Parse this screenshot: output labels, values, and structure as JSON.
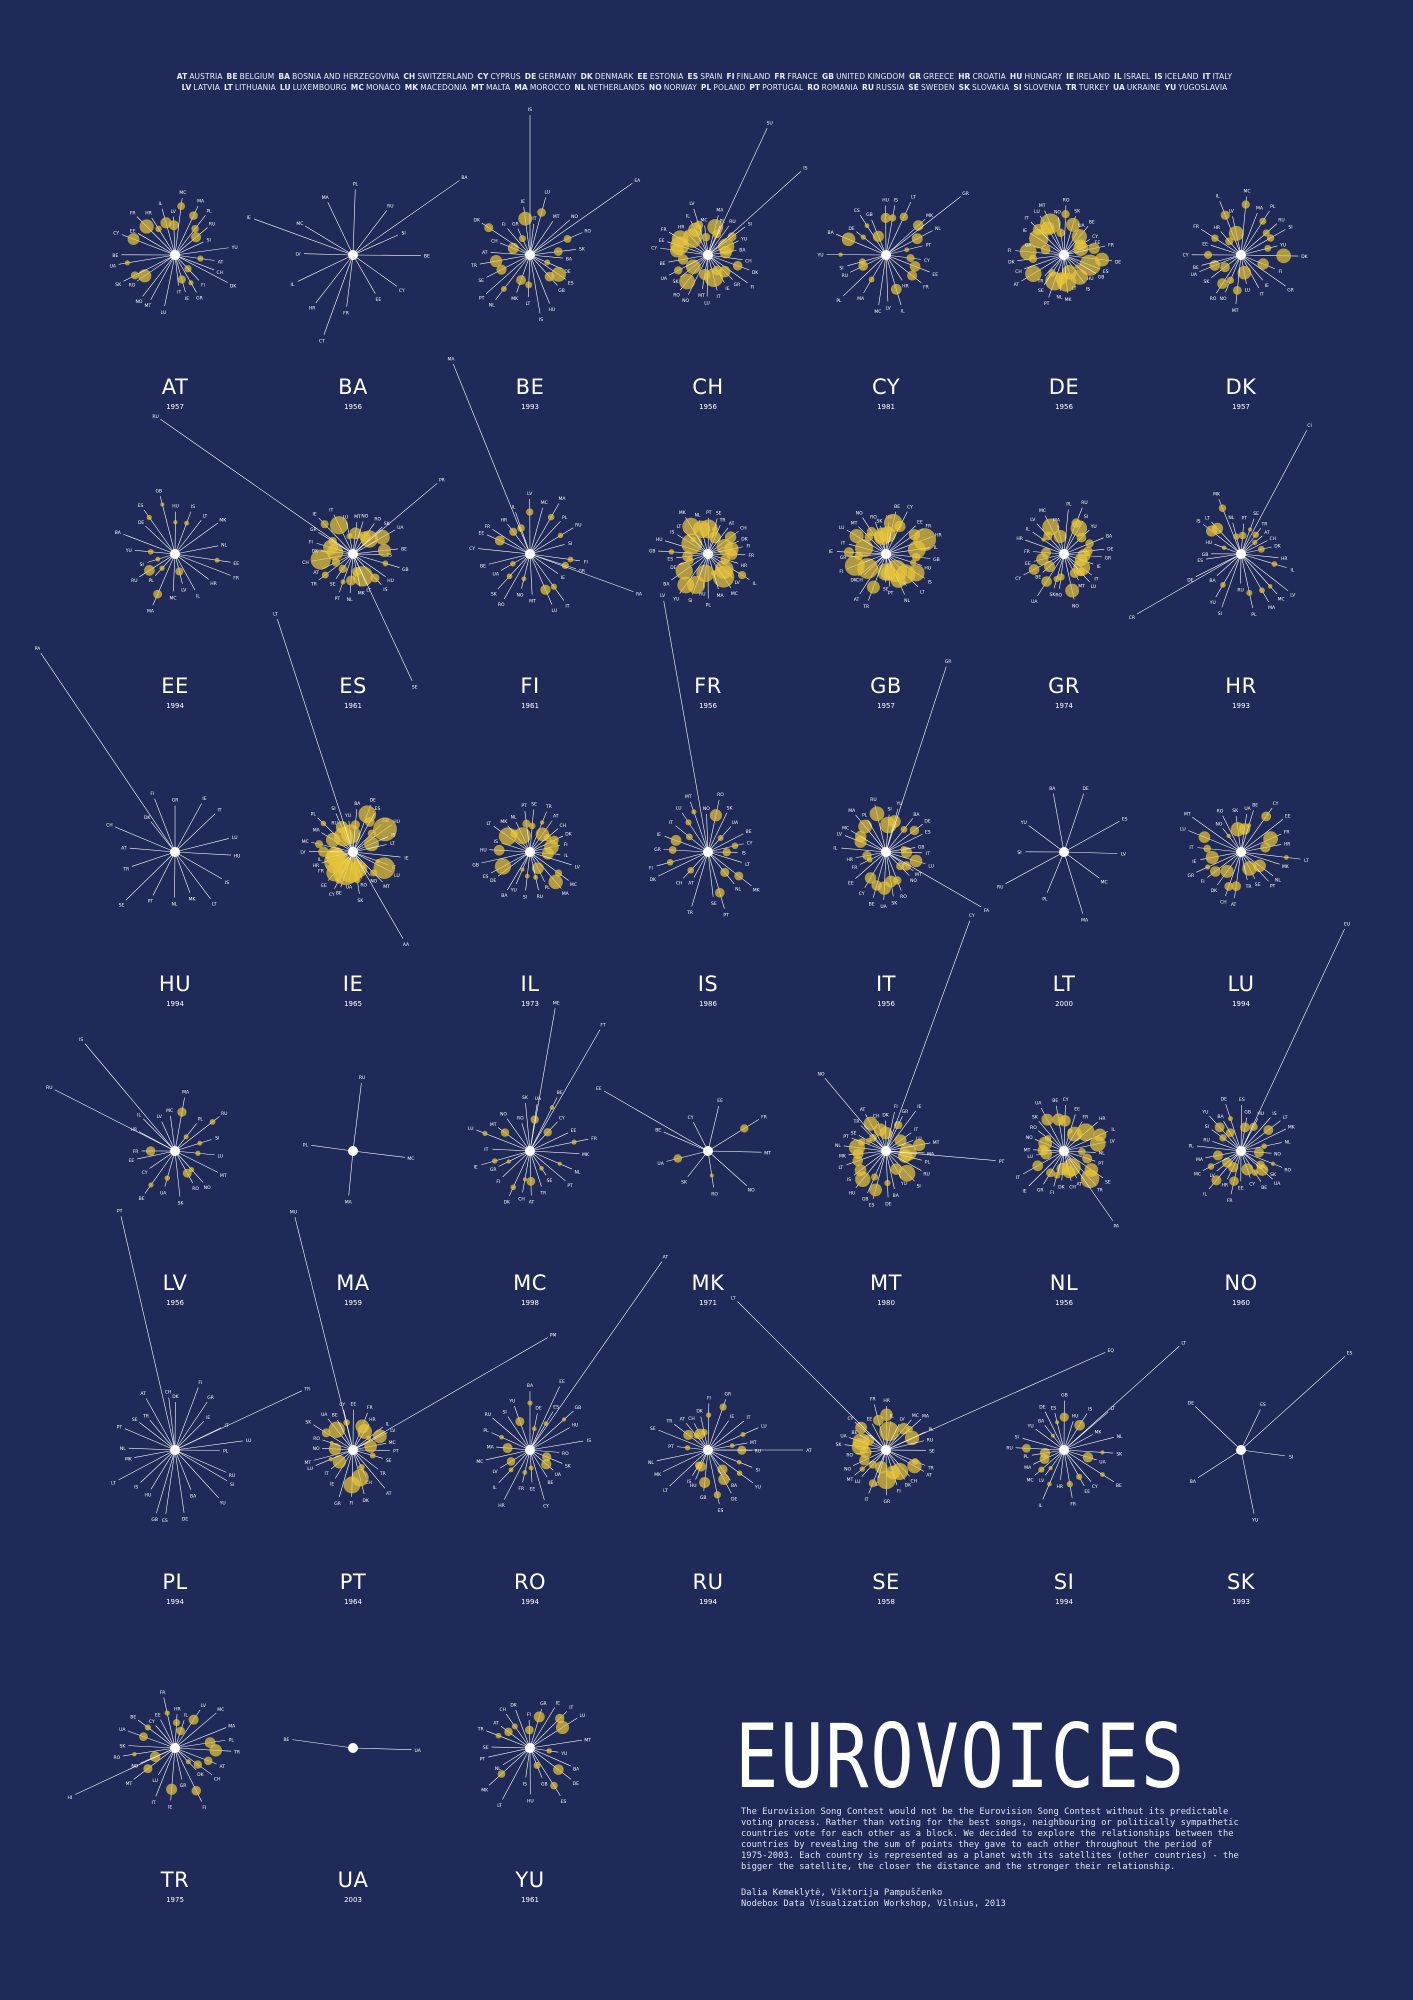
{
  "legend": {
    "line1": [
      [
        "AT",
        "AUSTRIA"
      ],
      [
        "BE",
        "BELGIUM"
      ],
      [
        "BA",
        "BOSNIA AND HERZEGOVINA"
      ],
      [
        "CH",
        "SWITZERLAND"
      ],
      [
        "CY",
        "CYPRUS"
      ],
      [
        "DE",
        "GERMANY"
      ],
      [
        "DK",
        "DENMARK"
      ],
      [
        "EE",
        "ESTONIA"
      ],
      [
        "ES",
        "SPAIN"
      ],
      [
        "FI",
        "FINLAND"
      ],
      [
        "FR",
        "FRANCE"
      ],
      [
        "GB",
        "UNITED KINGDOM"
      ],
      [
        "GR",
        "GREECE"
      ],
      [
        "HR",
        "CROATIA"
      ],
      [
        "HU",
        "HUNGARY"
      ],
      [
        "IE",
        "IRELAND"
      ],
      [
        "IL",
        "ISRAEL"
      ],
      [
        "IS",
        "ICELAND"
      ],
      [
        "IT",
        "ITALY"
      ]
    ],
    "line2": [
      [
        "LV",
        "LATVIA"
      ],
      [
        "LT",
        "LITHUANIA"
      ],
      [
        "LU",
        "LUXEMBOURG"
      ],
      [
        "MC",
        "MONACO"
      ],
      [
        "MK",
        "MACEDONIA"
      ],
      [
        "MT",
        "MALTA"
      ],
      [
        "MA",
        "MOROCCO"
      ],
      [
        "NL",
        "NETHERLANDS"
      ],
      [
        "NO",
        "NORWAY"
      ],
      [
        "PL",
        "POLAND"
      ],
      [
        "PT",
        "PORTUGAL"
      ],
      [
        "RO",
        "ROMANIA"
      ],
      [
        "RU",
        "RUSSIA"
      ],
      [
        "SE",
        "SWEDEN"
      ],
      [
        "SK",
        "SLOVAKIA"
      ],
      [
        "SI",
        "SLOVENIA"
      ],
      [
        "TR",
        "TURKEY"
      ],
      [
        "UA",
        "UKRAINE"
      ],
      [
        "YU",
        "YUGOSLAVIA"
      ]
    ]
  },
  "title": "EUROVOICES",
  "description": "The Eurovision Song Contest would not be the Eurovision Song Contest without its predictable voting process. Rather than voting for the best songs, neighbouring or politically sympathetic countries vote for each other as a block. We decided to explore the relationships between the countries by revealing the sum of points they gave to each other throughout the period of 1975-2003. Each country is represented as a planet with its satellites (other countries) - the bigger the satellite, the closer the distance and the stronger their relationship.",
  "credits": {
    "authors": "Dalia Kemeklytė, Viktorija Pampuščenko",
    "event": "Nodebox Data Visualization Workshop, Vilnius, 2013"
  },
  "colors": {
    "background": "#1f2a58",
    "satellite": "#e7c53a",
    "line": "#ffffff"
  },
  "countries": [
    {
      "code": "AT",
      "year": "1957",
      "density": 26,
      "strength": 0.35,
      "outliers": []
    },
    {
      "code": "BA",
      "year": "1956",
      "density": 12,
      "strength": 0.0,
      "outliers": [
        [
          "BA",
          -35,
          130
        ],
        [
          "CT",
          110,
          85
        ],
        [
          "IE",
          200,
          105
        ]
      ]
    },
    {
      "code": "BE",
      "year": "1993",
      "density": 24,
      "strength": 0.45,
      "outliers": [
        [
          "IS",
          -90,
          140
        ],
        [
          "EA",
          -35,
          125
        ]
      ]
    },
    {
      "code": "CH",
      "year": "1956",
      "density": 26,
      "strength": 0.75,
      "outliers": [
        [
          "SU",
          -65,
          140
        ],
        [
          "IS",
          -42,
          125
        ]
      ]
    },
    {
      "code": "CY",
      "year": "1981",
      "density": 22,
      "strength": 0.35,
      "outliers": [
        [
          "GR",
          -38,
          95
        ]
      ]
    },
    {
      "code": "DE",
      "year": "1956",
      "density": 28,
      "strength": 0.9,
      "outliers": []
    },
    {
      "code": "DK",
      "year": "1957",
      "density": 24,
      "strength": 0.45,
      "outliers": []
    },
    {
      "code": "EE",
      "year": "1994",
      "density": 20,
      "strength": 0.15,
      "outliers": []
    },
    {
      "code": "ES",
      "year": "1961",
      "density": 24,
      "strength": 0.8,
      "outliers": [
        [
          "RU",
          -145,
          235
        ],
        [
          "PR",
          -40,
          110
        ],
        [
          "SE",
          65,
          140
        ]
      ]
    },
    {
      "code": "FI",
      "year": "1961",
      "density": 22,
      "strength": 0.2,
      "outliers": [
        [
          "MA",
          -112,
          205
        ],
        [
          "RA",
          20,
          110
        ]
      ]
    },
    {
      "code": "FR",
      "year": "1956",
      "density": 26,
      "strength": 0.85,
      "outliers": []
    },
    {
      "code": "GB",
      "year": "1957",
      "density": 28,
      "strength": 1.0,
      "outliers": []
    },
    {
      "code": "GR",
      "year": "1974",
      "density": 24,
      "strength": 0.55,
      "outliers": []
    },
    {
      "code": "HR",
      "year": "1993",
      "density": 24,
      "strength": 0.2,
      "outliers": [
        [
          "CI",
          -62,
          140
        ],
        [
          "CR",
          150,
          120
        ]
      ]
    },
    {
      "code": "HU",
      "year": "1994",
      "density": 16,
      "strength": 0.0,
      "outliers": [
        [
          "PA",
          -124,
          240
        ]
      ]
    },
    {
      "code": "IE",
      "year": "1965",
      "density": 28,
      "strength": 1.0,
      "outliers": [
        [
          "LT",
          -108,
          245
        ],
        [
          "AA",
          60,
          100
        ]
      ]
    },
    {
      "code": "IL",
      "year": "1973",
      "density": 24,
      "strength": 0.6,
      "outliers": []
    },
    {
      "code": "IS",
      "year": "1986",
      "density": 22,
      "strength": 0.25,
      "outliers": [
        [
          "LV",
          -100,
          255
        ]
      ]
    },
    {
      "code": "IT",
      "year": "1956",
      "density": 24,
      "strength": 0.6,
      "outliers": [
        [
          "GR",
          -72,
          195
        ],
        [
          "FA",
          30,
          110
        ]
      ]
    },
    {
      "code": "LT",
      "year": "2000",
      "density": 10,
      "strength": 0.0,
      "outliers": []
    },
    {
      "code": "LU",
      "year": "1994",
      "density": 24,
      "strength": 0.45,
      "outliers": []
    },
    {
      "code": "LV",
      "year": "1956",
      "density": 18,
      "strength": 0.1,
      "outliers": [
        [
          "IS",
          -130,
          140
        ],
        [
          "RU",
          -153,
          135
        ]
      ]
    },
    {
      "code": "MA",
      "year": "1959",
      "density": 4,
      "strength": 0.0,
      "outliers": []
    },
    {
      "code": "MC",
      "year": "1998",
      "density": 22,
      "strength": 0.1,
      "outliers": [
        [
          "ME",
          -80,
          145
        ],
        [
          "FT",
          -60,
          140
        ]
      ]
    },
    {
      "code": "MK",
      "year": "1971",
      "density": 9,
      "strength": 0.05,
      "outliers": [
        [
          "EE",
          -150,
          120
        ]
      ]
    },
    {
      "code": "MT",
      "year": "1980",
      "density": 26,
      "strength": 0.55,
      "outliers": [
        [
          "CY",
          -70,
          245
        ],
        [
          "NO",
          -130,
          95
        ],
        [
          "PT",
          5,
          110
        ]
      ]
    },
    {
      "code": "NL",
      "year": "1956",
      "density": 24,
      "strength": 0.6,
      "outliers": [
        [
          "PA",
          55,
          85
        ]
      ]
    },
    {
      "code": "NO",
      "year": "1960",
      "density": 26,
      "strength": 0.55,
      "outliers": [
        [
          "EU",
          -65,
          245
        ]
      ]
    },
    {
      "code": "PL",
      "year": "1994",
      "density": 24,
      "strength": 0.0,
      "outliers": [
        [
          "PT",
          -103,
          240
        ],
        [
          "TR",
          -25,
          140
        ]
      ]
    },
    {
      "code": "PT",
      "year": "1964",
      "density": 24,
      "strength": 0.55,
      "outliers": [
        [
          "MU",
          -104,
          240
        ],
        [
          "PM",
          -30,
          225
        ]
      ]
    },
    {
      "code": "RO",
      "year": "1994",
      "density": 22,
      "strength": 0.15,
      "outliers": [
        [
          "AT",
          -55,
          230
        ],
        [
          "EE",
          -65,
          70
        ]
      ]
    },
    {
      "code": "RU",
      "year": "1994",
      "density": 24,
      "strength": 0.2,
      "outliers": [
        [
          "AT",
          0,
          95
        ]
      ]
    },
    {
      "code": "SE",
      "year": "1958",
      "density": 26,
      "strength": 0.7,
      "outliers": [
        [
          "EQ",
          -24,
          240
        ],
        [
          "LT",
          -135,
          210
        ]
      ]
    },
    {
      "code": "SI",
      "year": "1994",
      "density": 24,
      "strength": 0.15,
      "outliers": [
        [
          "LT",
          -42,
          155
        ]
      ]
    },
    {
      "code": "SK",
      "year": "1993",
      "density": 5,
      "strength": 0.0,
      "outliers": [
        [
          "ES",
          -42,
          140
        ]
      ]
    },
    {
      "code": "TR",
      "year": "1975",
      "density": 24,
      "strength": 0.35,
      "outliers": [
        [
          "HI",
          155,
          110
        ]
      ]
    },
    {
      "code": "UA",
      "year": "2003",
      "density": 2,
      "strength": 0.0,
      "outliers": []
    },
    {
      "code": "YU",
      "year": "1961",
      "density": 22,
      "strength": 0.4,
      "outliers": []
    }
  ]
}
